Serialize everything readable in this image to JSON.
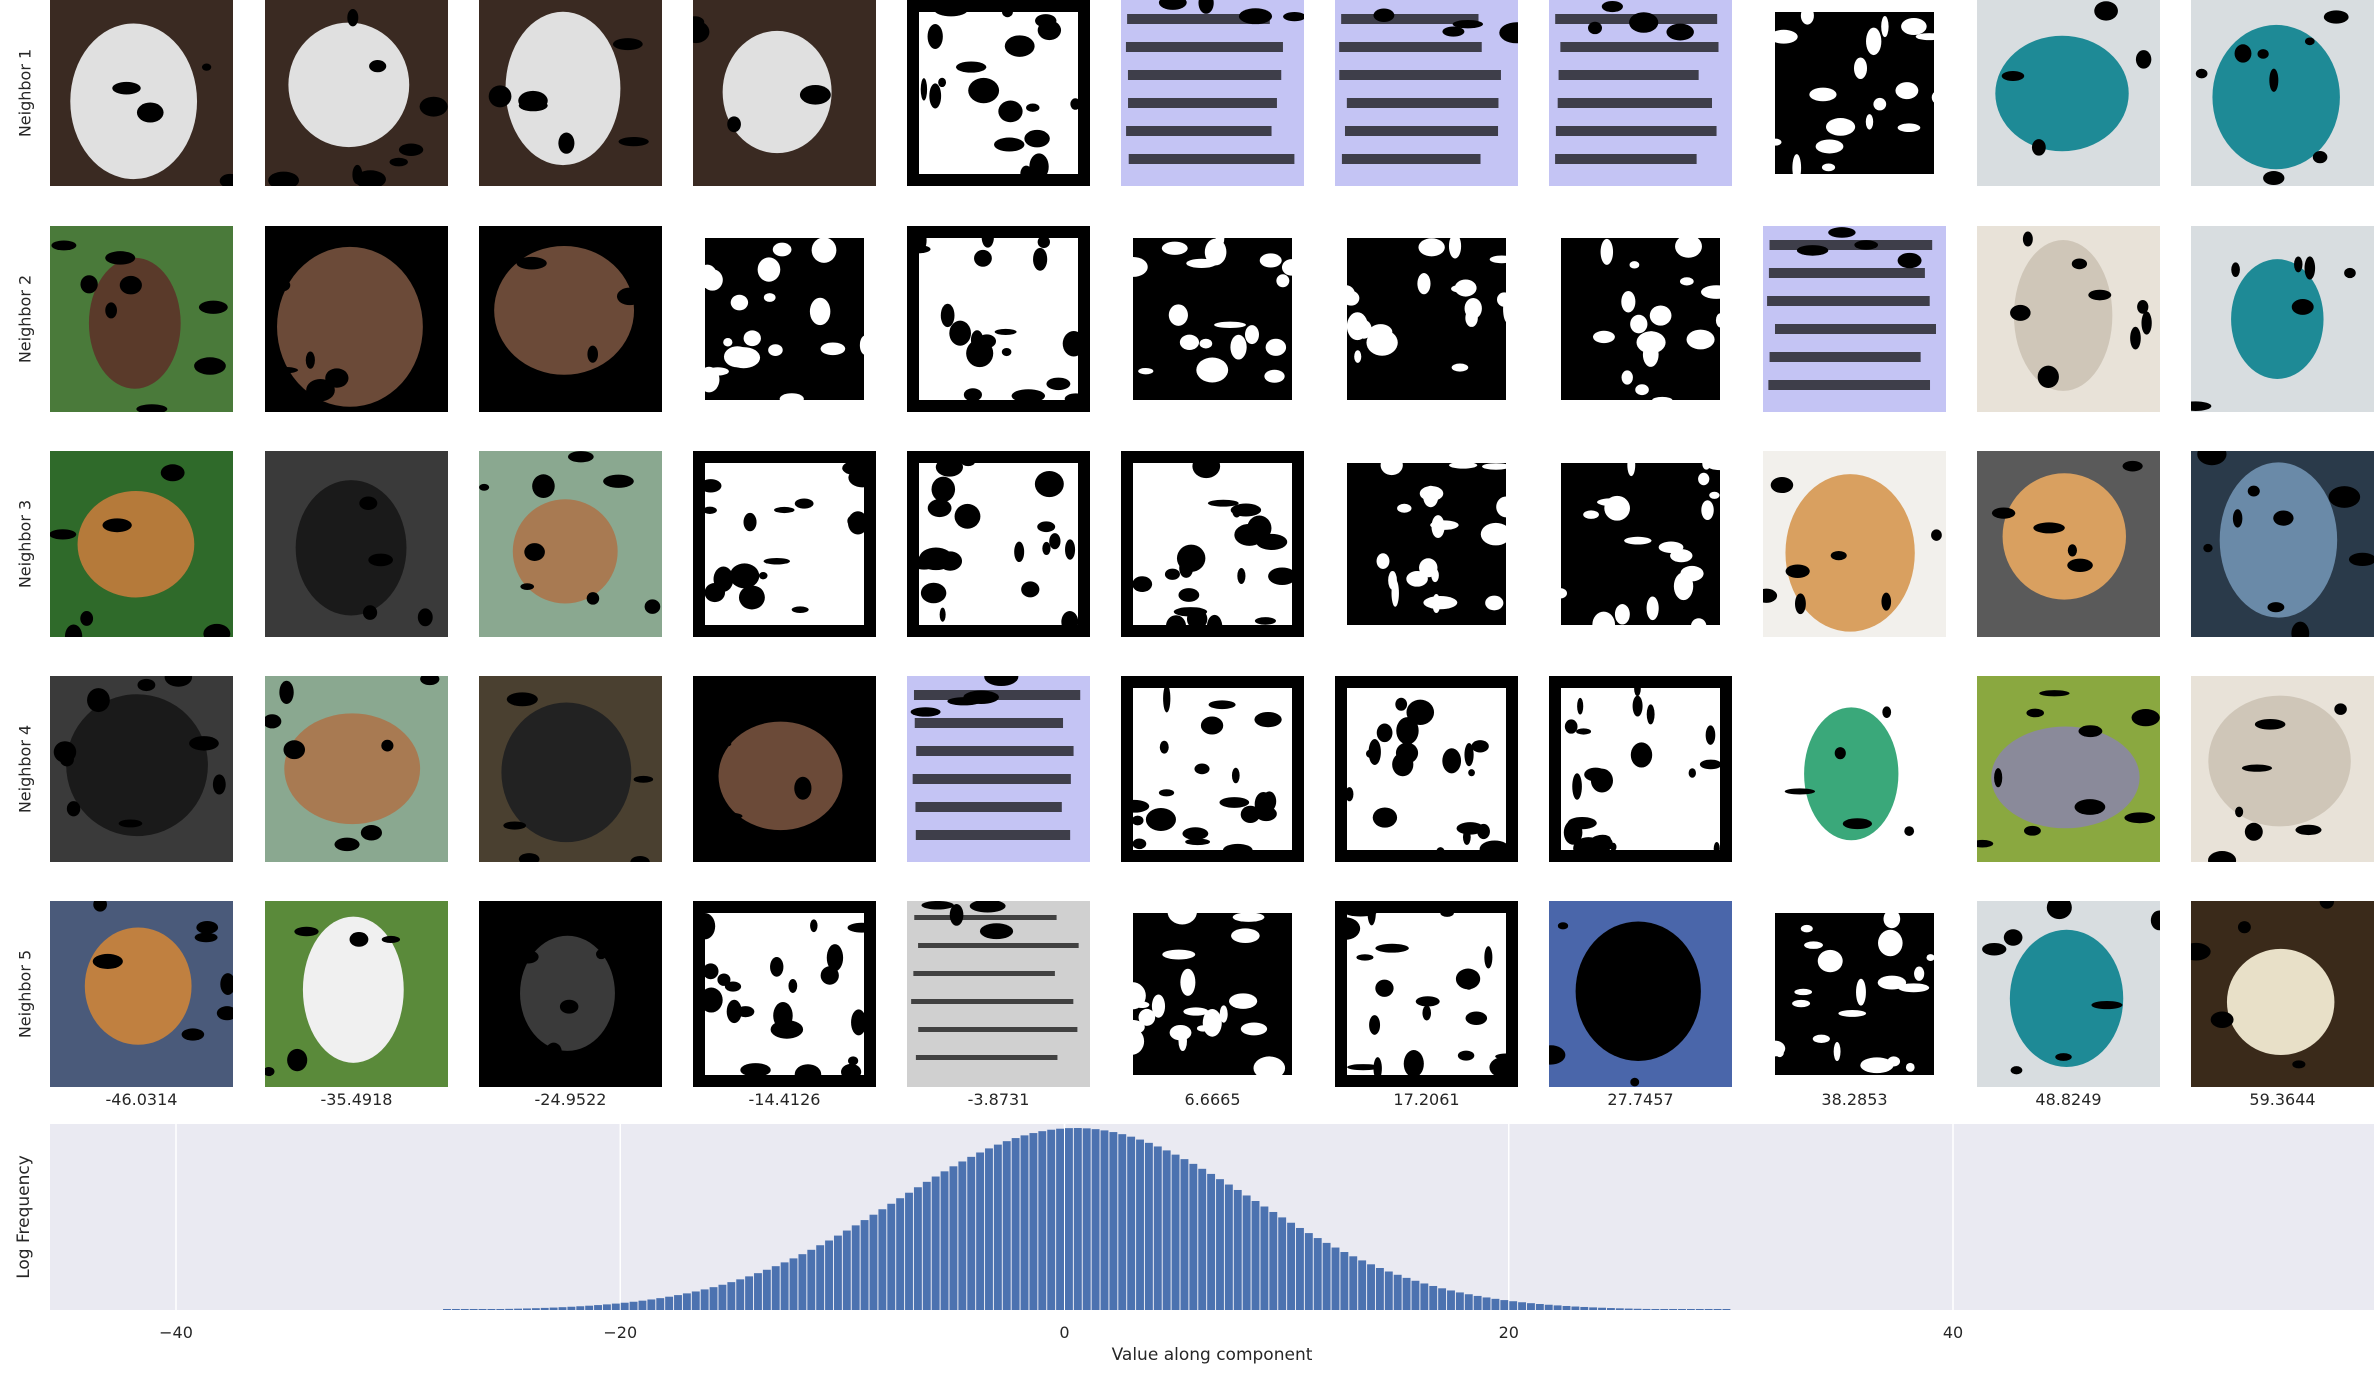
{
  "row_labels": [
    "Neighbor 1",
    "Neighbor 2",
    "Neighbor 3",
    "Neighbor 4",
    "Neighbor 5"
  ],
  "column_values": [
    "-46.0314",
    "-35.4918",
    "-24.9522",
    "-14.4126",
    "-3.8731",
    "6.6665",
    "17.2061",
    "27.7457",
    "38.2853",
    "48.8249",
    "59.3644"
  ],
  "grid": [
    [
      {
        "kind": "photo",
        "bg": "#3a2a22",
        "accent": "#e0e0e0",
        "desc": "golf ball"
      },
      {
        "kind": "photo",
        "bg": "#3a2a22",
        "accent": "#e0e0e0",
        "desc": "golf ball"
      },
      {
        "kind": "photo",
        "bg": "#3a2a22",
        "accent": "#e0e0e0",
        "desc": "golf ball"
      },
      {
        "kind": "photo",
        "bg": "#3a2a22",
        "accent": "#e0e0e0",
        "desc": "golf ball"
      },
      {
        "kind": "mask",
        "bg": "#000000",
        "accent": "#ffffff",
        "desc": "noise mask"
      },
      {
        "kind": "text",
        "bg": "#c4c4f4",
        "accent": "#111111",
        "desc": "text image"
      },
      {
        "kind": "text",
        "bg": "#c4c4f4",
        "accent": "#111111",
        "desc": "text image"
      },
      {
        "kind": "text",
        "bg": "#c4c4f4",
        "accent": "#111111",
        "desc": "text image"
      },
      {
        "kind": "mask",
        "bg": "#ffffff",
        "accent": "#000000",
        "desc": "white mask"
      },
      {
        "kind": "photo",
        "bg": "#d8dde0",
        "accent": "#1e8a96",
        "desc": "teal plush"
      },
      {
        "kind": "photo",
        "bg": "#d8dde0",
        "accent": "#1e8a96",
        "desc": "teal plush"
      }
    ],
    [
      {
        "kind": "photo",
        "bg": "#4a7a3a",
        "accent": "#5a3a2a",
        "desc": "brown dog"
      },
      {
        "kind": "photo",
        "bg": "#000000",
        "accent": "#6b4a38",
        "desc": "brown top"
      },
      {
        "kind": "photo",
        "bg": "#000000",
        "accent": "#6b4a38",
        "desc": "brown top"
      },
      {
        "kind": "mask",
        "bg": "#ffffff",
        "accent": "#000000",
        "desc": "white mask"
      },
      {
        "kind": "mask",
        "bg": "#000000",
        "accent": "#ffffff",
        "desc": "noise mask"
      },
      {
        "kind": "mask",
        "bg": "#ffffff",
        "accent": "#000000",
        "desc": "white mask"
      },
      {
        "kind": "mask",
        "bg": "#ffffff",
        "accent": "#000000",
        "desc": "white mask"
      },
      {
        "kind": "mask",
        "bg": "#ffffff",
        "accent": "#000000",
        "desc": "white mask"
      },
      {
        "kind": "text",
        "bg": "#c4c4f4",
        "accent": "#111111",
        "desc": "text image"
      },
      {
        "kind": "photo",
        "bg": "#e8e2d8",
        "accent": "#cfc6b8",
        "desc": "white terrier"
      },
      {
        "kind": "photo",
        "bg": "#d8dde0",
        "accent": "#1e8a96",
        "desc": "teal plush"
      }
    ],
    [
      {
        "kind": "photo",
        "bg": "#2f6a2a",
        "accent": "#b57a3a",
        "desc": "antelope"
      },
      {
        "kind": "photo",
        "bg": "#3a3a3a",
        "accent": "#1a1a1a",
        "desc": "rottweiler"
      },
      {
        "kind": "photo",
        "bg": "#8aa890",
        "accent": "#a87a52",
        "desc": "bulldog"
      },
      {
        "kind": "mask",
        "bg": "#000000",
        "accent": "#ffffff",
        "desc": "noise mask"
      },
      {
        "kind": "mask",
        "bg": "#000000",
        "accent": "#ffffff",
        "desc": "noise mask"
      },
      {
        "kind": "mask",
        "bg": "#000000",
        "accent": "#ffffff",
        "desc": "noise mask"
      },
      {
        "kind": "mask",
        "bg": "#ffffff",
        "accent": "#000000",
        "desc": "white mask"
      },
      {
        "kind": "mask",
        "bg": "#ffffff",
        "accent": "#000000",
        "desc": "white mask"
      },
      {
        "kind": "photo",
        "bg": "#f2f0ec",
        "accent": "#d9a060",
        "desc": "pomeranian"
      },
      {
        "kind": "photo",
        "bg": "#5a5a5a",
        "accent": "#d9a060",
        "desc": "pomeranian"
      },
      {
        "kind": "photo",
        "bg": "#2a3a4a",
        "accent": "#6a8aa8",
        "desc": "blue gorilla"
      }
    ],
    [
      {
        "kind": "photo",
        "bg": "#3a3a3a",
        "accent": "#1a1a1a",
        "desc": "rottweiler"
      },
      {
        "kind": "photo",
        "bg": "#8aa890",
        "accent": "#a87a52",
        "desc": "bulldog"
      },
      {
        "kind": "photo",
        "bg": "#4a4030",
        "accent": "#222222",
        "desc": "dark ball"
      },
      {
        "kind": "photo",
        "bg": "#000000",
        "accent": "#6b4a38",
        "desc": "brown top"
      },
      {
        "kind": "text",
        "bg": "#c4c4f4",
        "accent": "#111111",
        "desc": "text image"
      },
      {
        "kind": "mask",
        "bg": "#000000",
        "accent": "#ffffff",
        "desc": "noise mask"
      },
      {
        "kind": "mask",
        "bg": "#000000",
        "accent": "#ffffff",
        "desc": "noise mask"
      },
      {
        "kind": "mask",
        "bg": "#000000",
        "accent": "#ffffff",
        "desc": "noise mask"
      },
      {
        "kind": "photo",
        "bg": "#ffffff",
        "accent": "#3aa87a",
        "desc": "green jacket"
      },
      {
        "kind": "photo",
        "bg": "#8aa840",
        "accent": "#8a8a9a",
        "desc": "grey monkey"
      },
      {
        "kind": "photo",
        "bg": "#e8e2d8",
        "accent": "#cfc6b8",
        "desc": "white terrier"
      }
    ],
    [
      {
        "kind": "photo",
        "bg": "#4a5a7a",
        "accent": "#c08040",
        "desc": "tan dog"
      },
      {
        "kind": "photo",
        "bg": "#5a8a3a",
        "accent": "#f0f0f0",
        "desc": "cow"
      },
      {
        "kind": "photo",
        "bg": "#000000",
        "accent": "#3a3a3a",
        "desc": "dark spot"
      },
      {
        "kind": "mask",
        "bg": "#000000",
        "accent": "#ffffff",
        "desc": "noise mask"
      },
      {
        "kind": "text",
        "bg": "#d0d0d0",
        "accent": "#111111",
        "desc": "printed text"
      },
      {
        "kind": "mask",
        "bg": "#ffffff",
        "accent": "#000000",
        "desc": "white mask"
      },
      {
        "kind": "mask",
        "bg": "#000000",
        "accent": "#ffffff",
        "desc": "noise mask"
      },
      {
        "kind": "photo",
        "bg": "#4a66aa",
        "accent": "#000000",
        "desc": "blue stripes"
      },
      {
        "kind": "mask",
        "bg": "#ffffff",
        "accent": "#000000",
        "desc": "white mask"
      },
      {
        "kind": "photo",
        "bg": "#d8dde0",
        "accent": "#1e8a96",
        "desc": "teal plush"
      },
      {
        "kind": "photo",
        "bg": "#3a2a1a",
        "accent": "#e8e0c8",
        "desc": "white monkey"
      }
    ]
  ],
  "chart_data": {
    "type": "bar",
    "title": "",
    "xlabel": "Value along component",
    "ylabel": "Log Frequency",
    "xlim": [
      -50,
      59.3644
    ],
    "xticks": [
      -40,
      -20,
      0,
      20,
      40
    ],
    "xtick_labels": [
      "−40",
      "−20",
      "0",
      "20",
      "40"
    ],
    "grid": true,
    "bar_color": "#4c72b0",
    "background": "#eaeaf2",
    "bins": {
      "start": -28,
      "end": 30,
      "count": 145,
      "mean": 0.5,
      "std": 8.0,
      "peak_value": 1.0
    }
  },
  "colors": {
    "figure_bg": "#ffffff",
    "text": "#262626",
    "grid": "#ffffff"
  }
}
